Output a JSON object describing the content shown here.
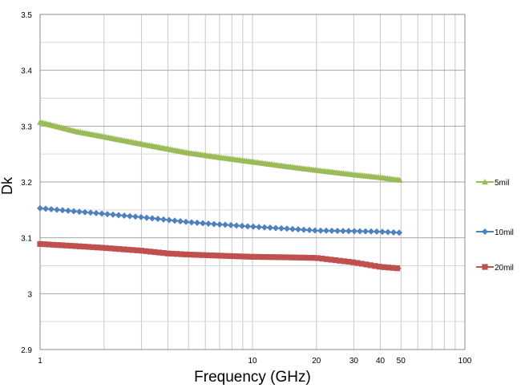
{
  "chart_data": {
    "type": "line",
    "xlabel": "Frequency (GHz)",
    "ylabel": "Dk",
    "xscale": "log",
    "xlim": [
      1,
      100
    ],
    "ylim": [
      2.9,
      3.5
    ],
    "x_ticks": [
      1,
      10,
      20,
      30,
      40,
      50,
      100
    ],
    "x_tick_labels": [
      "1",
      "10",
      "20",
      "30",
      "40",
      "50",
      "100"
    ],
    "y_ticks": [
      2.9,
      3.0,
      3.1,
      3.2,
      3.3,
      3.4,
      3.5
    ],
    "y_tick_labels": [
      "2.9",
      "3",
      "3.1",
      "3.2",
      "3.3",
      "3.4",
      "3.5"
    ],
    "grid": true,
    "legend_position": "right",
    "series": [
      {
        "name": "5mil",
        "color": "#9BBB59",
        "marker": "triangle",
        "x": [
          1,
          1.5,
          2,
          3,
          4,
          5,
          7,
          10,
          15,
          20,
          30,
          40,
          50
        ],
        "y": [
          3.307,
          3.29,
          3.281,
          3.268,
          3.259,
          3.252,
          3.244,
          3.236,
          3.227,
          3.221,
          3.213,
          3.208,
          3.203
        ]
      },
      {
        "name": "10mil",
        "color": "#4F81BD",
        "marker": "diamond",
        "x": [
          1,
          1.5,
          2,
          3,
          4,
          5,
          7,
          10,
          15,
          20,
          30,
          40,
          50
        ],
        "y": [
          3.153,
          3.147,
          3.143,
          3.137,
          3.132,
          3.128,
          3.124,
          3.12,
          3.116,
          3.113,
          3.112,
          3.111,
          3.109
        ]
      },
      {
        "name": "20mil",
        "color": "#C0504D",
        "marker": "square",
        "x": [
          1,
          1.5,
          2,
          3,
          4,
          5,
          7,
          10,
          15,
          20,
          30,
          40,
          50
        ],
        "y": [
          3.089,
          3.085,
          3.082,
          3.077,
          3.072,
          3.07,
          3.068,
          3.066,
          3.065,
          3.064,
          3.056,
          3.048,
          3.045
        ]
      }
    ]
  }
}
